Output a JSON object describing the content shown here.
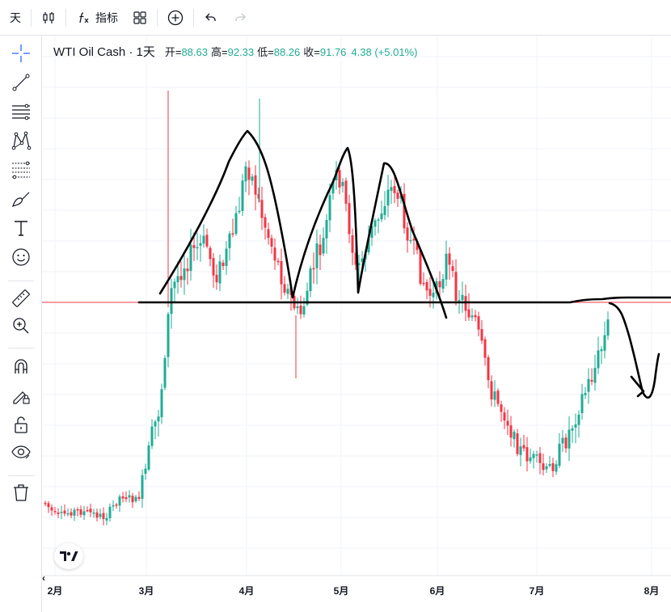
{
  "toolbar": {
    "interval_label": "天",
    "indicators_label": "指标"
  },
  "legend": {
    "symbol": "WTI Oil Cash · 1天",
    "open_label": "开=",
    "open_value": "88.63",
    "high_label": "高=",
    "high_value": "92.33",
    "low_label": "低=",
    "low_value": "88.26",
    "close_label": "收=",
    "close_value": "91.76",
    "change": "4.38 (+5.01%)"
  },
  "colors": {
    "up": "#22ab94",
    "down": "#f23645",
    "drawing": "#000000",
    "price_line": "#f23645",
    "grid": "#f0f3fa"
  },
  "icons": {
    "top": [
      "candles-icon",
      "fx-icon",
      "layout-grid-icon",
      "add-circle-icon",
      "undo-icon",
      "redo-icon"
    ],
    "left": [
      "crosshair-icon",
      "trendline-icon",
      "horizontal-lines-icon",
      "pattern-icon",
      "fib-icon",
      "brush-icon",
      "text-icon",
      "emoji-icon",
      "ruler-icon",
      "zoom-in-icon",
      "magnet-icon",
      "lock-drawing-icon",
      "unlock-icon",
      "eye-icon",
      "trash-icon"
    ]
  },
  "chart_data": {
    "type": "candlestick",
    "title": "WTI Oil Cash · 1天",
    "x_axis_labels": [
      "2月",
      "3月",
      "4月",
      "5月",
      "6月",
      "7月",
      "8月"
    ],
    "last_candle": {
      "open": 88.63,
      "high": 92.33,
      "low": 88.26,
      "close": 91.76,
      "change": 4.38,
      "change_pct": 5.01
    },
    "grid": true,
    "price_axis_visible": false,
    "annotations": [
      "hand-drawn triple-top outline",
      "horizontal neckline",
      "projected down then up arrow"
    ]
  }
}
